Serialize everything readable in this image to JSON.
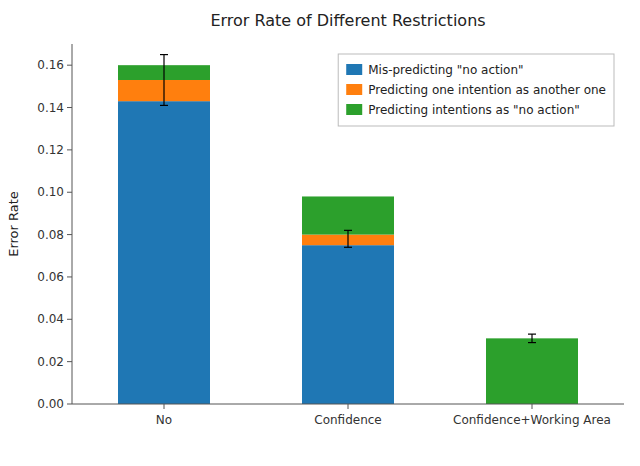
{
  "chart_data": {
    "type": "bar",
    "stacked": true,
    "title": "Error Rate of Different Restrictions",
    "y_label": "Error Rate",
    "categories": [
      "No",
      "Confidence",
      "Confidence+Working Area"
    ],
    "series": [
      {
        "name": "Mis-predicting \"no action\"",
        "color": "#1f77b4",
        "values": [
          0.143,
          0.075,
          0.0
        ]
      },
      {
        "name": "Predicting one intention as another one",
        "color": "#ff7f0e",
        "values": [
          0.01,
          0.005,
          0.0
        ]
      },
      {
        "name": "Predicting intentions as \"no action\"",
        "color": "#2ca02c",
        "values": [
          0.007,
          0.018,
          0.031
        ]
      }
    ],
    "error_bar_positions": [
      0.153,
      0.078,
      0.031
    ],
    "error_bars": [
      0.012,
      0.004,
      0.002
    ],
    "ylim": [
      0,
      0.17
    ],
    "yticks": [
      {
        "value": 0.0,
        "label": "0.00"
      },
      {
        "value": 0.02,
        "label": "0.02"
      },
      {
        "value": 0.04,
        "label": "0.04"
      },
      {
        "value": 0.06,
        "label": "0.06"
      },
      {
        "value": 0.08,
        "label": "0.08"
      },
      {
        "value": 0.1,
        "label": "0.10"
      },
      {
        "value": 0.12,
        "label": "0.12"
      },
      {
        "value": 0.14,
        "label": "0.14"
      },
      {
        "value": 0.16,
        "label": "0.16"
      }
    ],
    "grid": false,
    "legend": "upper right"
  }
}
